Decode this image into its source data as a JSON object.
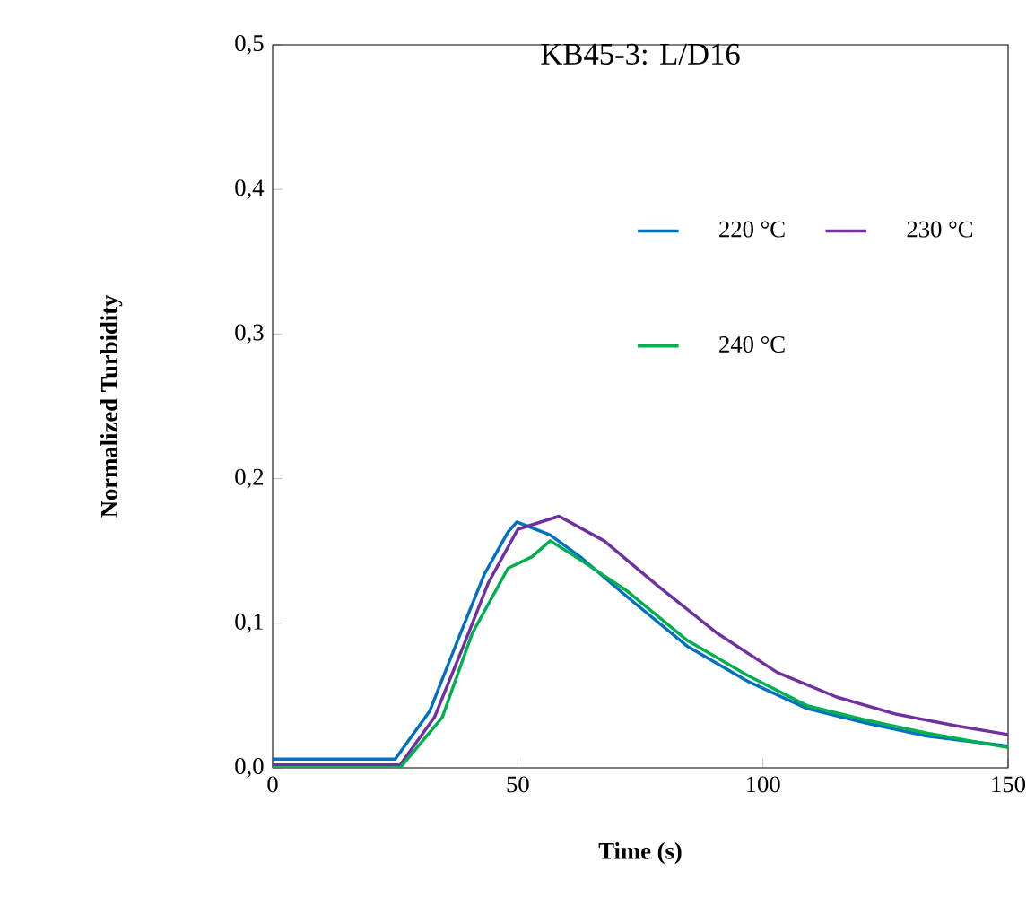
{
  "chart_data": {
    "type": "line",
    "title": "KB45-3: L/D16",
    "xlabel": "Time (s)",
    "ylabel": "Normalized Turbidity",
    "xlim": [
      0,
      150
    ],
    "xticks": [
      0,
      50,
      100,
      150
    ],
    "ylim": [
      0,
      0.5
    ],
    "yticks": [
      {
        "value": 0,
        "label": "0,0"
      },
      {
        "value": 0.1,
        "label": "0,1"
      },
      {
        "value": 0.2,
        "label": "0,2"
      },
      {
        "value": 0.3,
        "label": "0,3"
      },
      {
        "value": 0.4,
        "label": "0,4"
      },
      {
        "value": 0.5,
        "label": "0,5"
      }
    ],
    "legend": "right",
    "marker": "none",
    "line_style": "solid",
    "series": [
      {
        "name": "220 °C",
        "color": "#0070c0",
        "x": [
          0,
          10,
          20,
          25,
          32,
          38.3,
          43.2,
          48,
          49.8,
          56.6,
          62.7,
          72.4,
          84.6,
          96.8,
          109,
          121,
          133.4,
          150
        ],
        "values": [
          0.006,
          0.006,
          0.006,
          0.006,
          0.039,
          0.093,
          0.134,
          0.163,
          0.17,
          0.161,
          0.146,
          0.118,
          0.084,
          0.06,
          0.041,
          0.031,
          0.022,
          0.015
        ]
      },
      {
        "name": "230 °C",
        "color": "#7030a0",
        "x": [
          0,
          10,
          20,
          26,
          33,
          39,
          44,
          50,
          58.4,
          67.6,
          78.5,
          90.7,
          102.9,
          115,
          127.3,
          139.5,
          150
        ],
        "values": [
          0.002,
          0.002,
          0.002,
          0.002,
          0.035,
          0.085,
          0.128,
          0.165,
          0.174,
          0.157,
          0.126,
          0.093,
          0.066,
          0.049,
          0.037,
          0.029,
          0.023
        ]
      },
      {
        "name": "240 °C",
        "color": "#00b050",
        "x": [
          0,
          10,
          20,
          26,
          34.6,
          40.7,
          48,
          52.9,
          56.6,
          62.7,
          72.4,
          84.6,
          96.8,
          109,
          121,
          133.4,
          150
        ],
        "values": [
          0,
          0,
          0,
          0,
          0.035,
          0.093,
          0.138,
          0.146,
          0.157,
          0.144,
          0.122,
          0.088,
          0.064,
          0.043,
          0.033,
          0.024,
          0.014
        ]
      }
    ]
  }
}
